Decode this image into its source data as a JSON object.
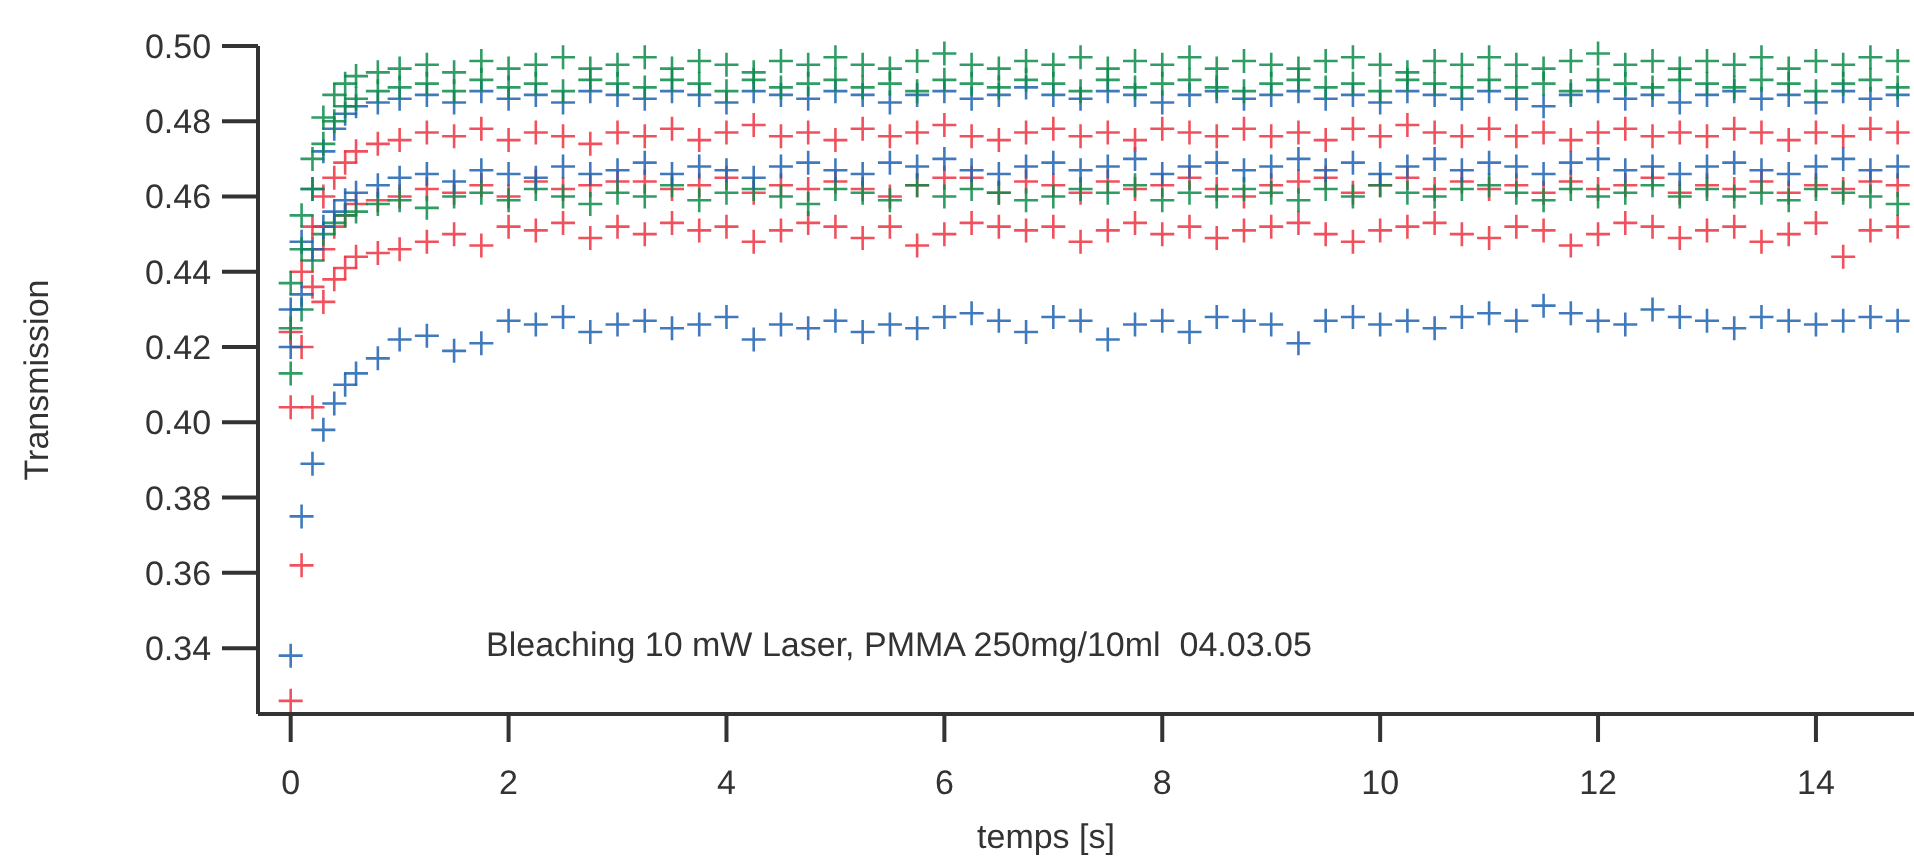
{
  "chart_data": {
    "type": "scatter",
    "xlabel": "temps [s]",
    "ylabel": "Transmission",
    "annotations": [
      "Bleaching 10 mW Laser, PMMA 250mg/10ml  04.03.05"
    ],
    "xlim": [
      -0.3,
      14.9
    ],
    "ylim": [
      0.3225,
      0.5
    ],
    "xticks": [
      0,
      2,
      4,
      6,
      8,
      10,
      12,
      14
    ],
    "yticks": [
      {
        "value": 0.34,
        "label": "0.34"
      },
      {
        "value": 0.36,
        "label": "0.36"
      },
      {
        "value": 0.38,
        "label": "0.38"
      },
      {
        "value": 0.4,
        "label": "0.40"
      },
      {
        "value": 0.42,
        "label": "0.42"
      },
      {
        "value": 0.44,
        "label": "0.44"
      },
      {
        "value": 0.46,
        "label": "0.46"
      },
      {
        "value": 0.48,
        "label": "0.48"
      },
      {
        "value": 0.5,
        "label": "0.50"
      }
    ],
    "grid": false,
    "marker": "cross",
    "x": [
      0,
      0.1,
      0.2,
      0.3,
      0.4,
      0.5,
      0.6,
      0.8,
      1,
      1.25,
      1.5,
      1.75,
      2,
      2.25,
      2.5,
      2.75,
      3,
      3.25,
      3.5,
      3.75,
      4,
      4.25,
      4.5,
      4.75,
      5,
      5.25,
      5.5,
      5.75,
      6,
      6.25,
      6.5,
      6.75,
      7,
      7.25,
      7.5,
      7.75,
      8,
      8.25,
      8.5,
      8.75,
      9,
      9.25,
      9.5,
      9.75,
      10,
      10.25,
      10.5,
      10.75,
      11,
      11.25,
      11.5,
      11.75,
      12,
      12.25,
      12.5,
      12.75,
      13,
      13.25,
      13.5,
      13.75,
      14,
      14.25,
      14.5,
      14.75
    ],
    "series": [
      {
        "color": "#1f63b0",
        "values": [
          0.338,
          0.375,
          0.389,
          0.398,
          0.405,
          0.41,
          0.413,
          0.417,
          0.422,
          0.423,
          0.419,
          0.421,
          0.427,
          0.426,
          0.428,
          0.424,
          0.426,
          0.427,
          0.425,
          0.426,
          0.428,
          0.422,
          0.426,
          0.425,
          0.427,
          0.424,
          0.426,
          0.425,
          0.428,
          0.429,
          0.427,
          0.424,
          0.428,
          0.427,
          0.422,
          0.426,
          0.427,
          0.424,
          0.428,
          0.427,
          0.426,
          0.421,
          0.427,
          0.428,
          0.426,
          0.427,
          0.425,
          0.428,
          0.429,
          0.427,
          0.431,
          0.429,
          0.427,
          0.426,
          0.43,
          0.428,
          0.427,
          0.425,
          0.428,
          0.427,
          0.426,
          0.427,
          0.428,
          0.427
        ]
      },
      {
        "color": "#ee3340",
        "values": [
          0.326,
          0.362,
          0.404,
          0.432,
          0.438,
          0.441,
          0.444,
          0.445,
          0.446,
          0.448,
          0.45,
          0.447,
          0.452,
          0.451,
          0.453,
          0.449,
          0.452,
          0.45,
          0.453,
          0.451,
          0.452,
          0.448,
          0.451,
          0.453,
          0.452,
          0.449,
          0.452,
          0.447,
          0.45,
          0.453,
          0.452,
          0.451,
          0.452,
          0.448,
          0.451,
          0.453,
          0.45,
          0.452,
          0.449,
          0.451,
          0.452,
          0.453,
          0.45,
          0.448,
          0.451,
          0.452,
          0.453,
          0.45,
          0.449,
          0.452,
          0.451,
          0.447,
          0.45,
          0.453,
          0.452,
          0.449,
          0.451,
          0.452,
          0.448,
          0.45,
          0.453,
          0.444,
          0.451,
          0.452
        ]
      },
      {
        "color": "#ee3340",
        "values": [
          0.404,
          0.42,
          0.436,
          0.446,
          0.452,
          0.455,
          0.458,
          0.459,
          0.46,
          0.462,
          0.461,
          0.463,
          0.46,
          0.464,
          0.462,
          0.463,
          0.464,
          0.464,
          0.462,
          0.463,
          0.465,
          0.461,
          0.463,
          0.462,
          0.464,
          0.462,
          0.46,
          0.463,
          0.465,
          0.465,
          0.461,
          0.464,
          0.463,
          0.461,
          0.464,
          0.462,
          0.463,
          0.465,
          0.462,
          0.46,
          0.463,
          0.464,
          0.465,
          0.461,
          0.463,
          0.465,
          0.462,
          0.464,
          0.462,
          0.463,
          0.461,
          0.464,
          0.462,
          0.463,
          0.465,
          0.461,
          0.463,
          0.462,
          0.464,
          0.461,
          0.463,
          0.462,
          0.464,
          0.463
        ]
      },
      {
        "color": "#0a8c4a",
        "values": [
          0.413,
          0.43,
          0.443,
          0.45,
          0.453,
          0.455,
          0.456,
          0.458,
          0.459,
          0.457,
          0.46,
          0.461,
          0.459,
          0.462,
          0.46,
          0.458,
          0.461,
          0.46,
          0.463,
          0.459,
          0.461,
          0.462,
          0.46,
          0.458,
          0.462,
          0.461,
          0.459,
          0.463,
          0.46,
          0.462,
          0.461,
          0.459,
          0.46,
          0.462,
          0.461,
          0.463,
          0.459,
          0.461,
          0.46,
          0.462,
          0.461,
          0.459,
          0.462,
          0.46,
          0.463,
          0.461,
          0.46,
          0.462,
          0.463,
          0.461,
          0.459,
          0.462,
          0.46,
          0.461,
          0.463,
          0.46,
          0.462,
          0.46,
          0.461,
          0.459,
          0.462,
          0.461,
          0.46,
          0.458
        ]
      },
      {
        "color": "#1f63b0",
        "values": [
          0.42,
          0.434,
          0.446,
          0.452,
          0.456,
          0.459,
          0.461,
          0.463,
          0.465,
          0.466,
          0.464,
          0.467,
          0.466,
          0.465,
          0.468,
          0.466,
          0.467,
          0.469,
          0.466,
          0.468,
          0.467,
          0.465,
          0.468,
          0.469,
          0.467,
          0.466,
          0.469,
          0.468,
          0.47,
          0.467,
          0.466,
          0.468,
          0.469,
          0.467,
          0.468,
          0.47,
          0.466,
          0.468,
          0.469,
          0.467,
          0.468,
          0.47,
          0.467,
          0.469,
          0.466,
          0.468,
          0.47,
          0.467,
          0.469,
          0.468,
          0.466,
          0.469,
          0.47,
          0.467,
          0.468,
          0.466,
          0.468,
          0.469,
          0.467,
          0.466,
          0.468,
          0.47,
          0.467,
          0.468
        ]
      },
      {
        "color": "#ee3340",
        "values": [
          0.424,
          0.44,
          0.452,
          0.46,
          0.465,
          0.469,
          0.472,
          0.474,
          0.475,
          0.477,
          0.476,
          0.478,
          0.475,
          0.477,
          0.476,
          0.474,
          0.477,
          0.476,
          0.478,
          0.475,
          0.477,
          0.479,
          0.476,
          0.477,
          0.475,
          0.478,
          0.476,
          0.477,
          0.479,
          0.476,
          0.475,
          0.477,
          0.478,
          0.476,
          0.477,
          0.475,
          0.478,
          0.477,
          0.476,
          0.478,
          0.476,
          0.477,
          0.475,
          0.478,
          0.476,
          0.479,
          0.477,
          0.476,
          0.478,
          0.476,
          0.477,
          0.475,
          0.477,
          0.478,
          0.476,
          0.477,
          0.476,
          0.478,
          0.477,
          0.475,
          0.477,
          0.476,
          0.478,
          0.477
        ]
      },
      {
        "color": "#1f63b0",
        "values": [
          0.43,
          0.448,
          0.462,
          0.472,
          0.478,
          0.482,
          0.484,
          0.485,
          0.486,
          0.487,
          0.485,
          0.488,
          0.486,
          0.487,
          0.485,
          0.488,
          0.487,
          0.486,
          0.488,
          0.487,
          0.485,
          0.488,
          0.487,
          0.486,
          0.488,
          0.487,
          0.485,
          0.487,
          0.488,
          0.486,
          0.487,
          0.489,
          0.487,
          0.486,
          0.488,
          0.487,
          0.485,
          0.487,
          0.488,
          0.486,
          0.487,
          0.488,
          0.486,
          0.487,
          0.485,
          0.488,
          0.487,
          0.486,
          0.488,
          0.486,
          0.484,
          0.487,
          0.488,
          0.486,
          0.487,
          0.485,
          0.487,
          0.488,
          0.486,
          0.487,
          0.485,
          0.488,
          0.486,
          0.487
        ]
      },
      {
        "color": "#0a8c4a",
        "values": [
          0.425,
          0.446,
          0.462,
          0.474,
          0.48,
          0.484,
          0.486,
          0.488,
          0.489,
          0.49,
          0.488,
          0.491,
          0.489,
          0.49,
          0.488,
          0.491,
          0.49,
          0.489,
          0.491,
          0.49,
          0.488,
          0.491,
          0.489,
          0.49,
          0.491,
          0.489,
          0.49,
          0.488,
          0.491,
          0.49,
          0.489,
          0.491,
          0.49,
          0.488,
          0.491,
          0.489,
          0.49,
          0.491,
          0.489,
          0.488,
          0.49,
          0.491,
          0.489,
          0.49,
          0.488,
          0.491,
          0.49,
          0.489,
          0.491,
          0.489,
          0.49,
          0.488,
          0.491,
          0.49,
          0.489,
          0.491,
          0.49,
          0.489,
          0.491,
          0.49,
          0.488,
          0.49,
          0.491,
          0.489
        ]
      },
      {
        "color": "#0a8c4a",
        "values": [
          0.437,
          0.455,
          0.47,
          0.481,
          0.487,
          0.49,
          0.492,
          0.493,
          0.494,
          0.495,
          0.493,
          0.496,
          0.494,
          0.495,
          0.497,
          0.494,
          0.495,
          0.497,
          0.494,
          0.496,
          0.495,
          0.493,
          0.496,
          0.495,
          0.497,
          0.495,
          0.494,
          0.496,
          0.498,
          0.495,
          0.494,
          0.496,
          0.495,
          0.497,
          0.494,
          0.496,
          0.495,
          0.497,
          0.494,
          0.496,
          0.495,
          0.494,
          0.496,
          0.497,
          0.495,
          0.493,
          0.496,
          0.495,
          0.497,
          0.495,
          0.494,
          0.496,
          0.498,
          0.495,
          0.496,
          0.494,
          0.496,
          0.495,
          0.497,
          0.494,
          0.496,
          0.495,
          0.497,
          0.496
        ]
      }
    ]
  }
}
